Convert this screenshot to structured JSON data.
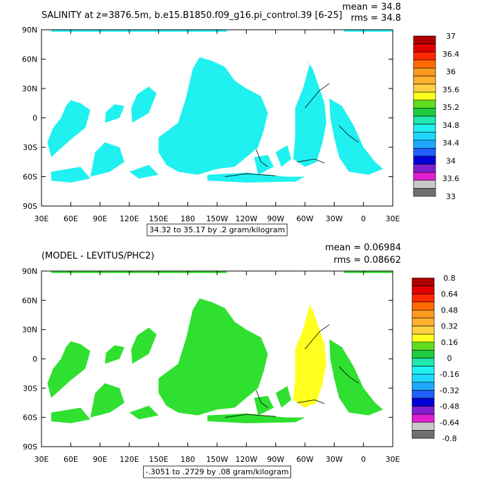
{
  "chart_data": [
    {
      "type": "heatmap",
      "title": "SALINITY at z=3876.5m, b.e15.B1850.f09_g16.pi_control.39 [6-25]",
      "stats": [
        "mean = 34.8",
        "rms = 34.8"
      ],
      "range_label": "34.32 to 35.17 by .2 gram/kilogram",
      "x_ticks": [
        "30E",
        "60E",
        "90E",
        "120E",
        "150E",
        "180",
        "150W",
        "120W",
        "90W",
        "60W",
        "30W",
        "0",
        "30E"
      ],
      "y_ticks": [
        "90N",
        "60N",
        "30N",
        "0",
        "30S",
        "60S",
        "90S"
      ],
      "xlim": [
        30,
        390
      ],
      "ylim": [
        -90,
        90
      ],
      "colorbar_labels": [
        "37",
        "36.4",
        "36",
        "35.6",
        "35.2",
        "34.8",
        "34.4",
        "34",
        "33.6",
        "33"
      ],
      "colorbar_colors": [
        "#b00000",
        "#e00000",
        "#ff2a00",
        "#ff6a00",
        "#ff9a20",
        "#ffb030",
        "#ffd040",
        "#ffff20",
        "#60dd20",
        "#20cc40",
        "#20e8b0",
        "#20f0f0",
        "#20d8ff",
        "#20a8ff",
        "#2060ff",
        "#0000d8",
        "#8020d0",
        "#e020d0",
        "#c8c8c8",
        "#707070"
      ],
      "field_color": "#20f0f0",
      "accent_color": "#20cc40"
    },
    {
      "type": "heatmap",
      "title": "(MODEL - LEVITUS/PHC2)",
      "stats": [
        "mean = 0.06984",
        "rms = 0.08662"
      ],
      "range_label": "-.3051 to .2729 by .08 gram/kilogram",
      "x_ticks": [
        "30E",
        "60E",
        "90E",
        "120E",
        "150E",
        "180",
        "150W",
        "120W",
        "90W",
        "60W",
        "30W",
        "0",
        "30E"
      ],
      "y_ticks": [
        "90N",
        "60N",
        "30N",
        "0",
        "30S",
        "60S",
        "90S"
      ],
      "xlim": [
        30,
        390
      ],
      "ylim": [
        -90,
        90
      ],
      "colorbar_labels": [
        "0.8",
        "0.64",
        "0.48",
        "0.32",
        "0.16",
        "0",
        "-0.16",
        "-0.32",
        "-0.48",
        "-0.64",
        "-0.8"
      ],
      "colorbar_colors": [
        "#b00000",
        "#e00000",
        "#ff2a00",
        "#ff6a00",
        "#ff9a20",
        "#ffb030",
        "#ffd040",
        "#ffff20",
        "#60dd20",
        "#20cc40",
        "#20e8b0",
        "#20f0f0",
        "#20d8ff",
        "#20a8ff",
        "#2060ff",
        "#0000d8",
        "#8020d0",
        "#e020d0",
        "#c8c8c8",
        "#707070"
      ],
      "field_color": "#30e030",
      "accent_color": "#ffff20"
    }
  ]
}
